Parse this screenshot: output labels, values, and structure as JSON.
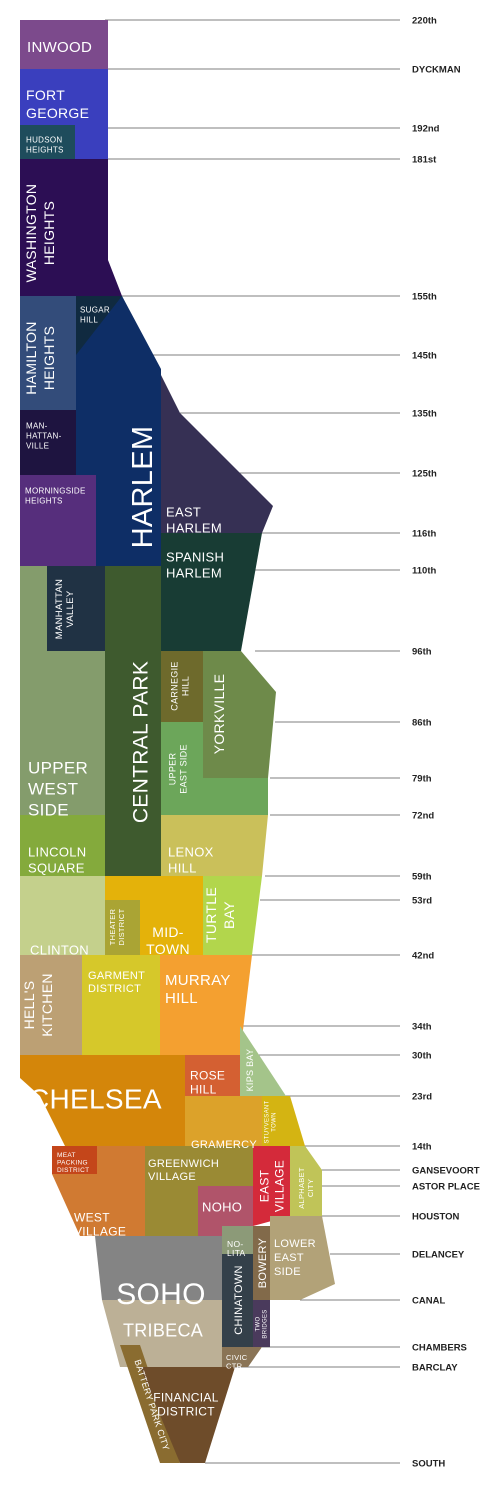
{
  "map": {
    "streets": [
      {
        "id": "220th",
        "label": "220th"
      },
      {
        "id": "dyckman",
        "label": "DYCKMAN"
      },
      {
        "id": "192nd",
        "label": "192nd"
      },
      {
        "id": "181st",
        "label": "181st"
      },
      {
        "id": "155th",
        "label": "155th"
      },
      {
        "id": "145th",
        "label": "145th"
      },
      {
        "id": "135th",
        "label": "135th"
      },
      {
        "id": "125th",
        "label": "125th"
      },
      {
        "id": "116th",
        "label": "116th"
      },
      {
        "id": "110th",
        "label": "110th"
      },
      {
        "id": "96th",
        "label": "96th"
      },
      {
        "id": "86th",
        "label": "86th"
      },
      {
        "id": "79th",
        "label": "79th"
      },
      {
        "id": "72nd",
        "label": "72nd"
      },
      {
        "id": "59th",
        "label": "59th"
      },
      {
        "id": "53rd",
        "label": "53rd"
      },
      {
        "id": "42nd",
        "label": "42nd"
      },
      {
        "id": "34th",
        "label": "34th"
      },
      {
        "id": "30th",
        "label": "30th"
      },
      {
        "id": "23rd",
        "label": "23rd"
      },
      {
        "id": "14th",
        "label": "14th"
      },
      {
        "id": "gansevoort",
        "label": "GANSEVOORT"
      },
      {
        "id": "astor",
        "label": "ASTOR PLACE"
      },
      {
        "id": "houston",
        "label": "HOUSTON"
      },
      {
        "id": "delancey",
        "label": "DELANCEY"
      },
      {
        "id": "canal",
        "label": "CANAL"
      },
      {
        "id": "chambers",
        "label": "CHAMBERS"
      },
      {
        "id": "barclay",
        "label": "BARCLAY"
      },
      {
        "id": "south",
        "label": "SOUTH"
      }
    ],
    "neighborhoods": [
      {
        "id": "inwood",
        "lines": [
          "INWOOD"
        ],
        "color": "#7c4a8c"
      },
      {
        "id": "fort-george",
        "lines": [
          "FORT",
          "GEORGE"
        ],
        "color": "#3a3fbe"
      },
      {
        "id": "hudson-heights",
        "lines": [
          "HUDSON",
          "HEIGHTS"
        ],
        "color": "#1e4c5c"
      },
      {
        "id": "washington-heights",
        "lines": [
          "WASHINGTON",
          "HEIGHTS"
        ],
        "color": "#2c0e54"
      },
      {
        "id": "sugar-hill",
        "lines": [
          "SUGAR",
          "HILL"
        ],
        "color": "#102a40"
      },
      {
        "id": "hamilton-heights",
        "lines": [
          "HAMILTON",
          "HEIGHTS"
        ],
        "color": "#334c7a"
      },
      {
        "id": "manhattanville",
        "lines": [
          "MAN-",
          "HATTAN-",
          "VILLE"
        ],
        "color": "#1e1440"
      },
      {
        "id": "harlem",
        "lines": [
          "HARLEM"
        ],
        "color": "#0e2e66"
      },
      {
        "id": "morningside-heights",
        "lines": [
          "MORNINGSIDE",
          "HEIGHTS"
        ],
        "color": "#562e7c"
      },
      {
        "id": "east-harlem",
        "lines": [
          "EAST",
          "HARLEM"
        ],
        "color": "#363054"
      },
      {
        "id": "spanish-harlem",
        "lines": [
          "SPANISH",
          "HARLEM"
        ],
        "color": "#183c34"
      },
      {
        "id": "manhattan-valley",
        "lines": [
          "MANHATTAN",
          "VALLEY"
        ],
        "color": "#203244"
      },
      {
        "id": "upper-west-side",
        "lines": [
          "UPPER",
          "WEST",
          "SIDE"
        ],
        "color": "#849c6c"
      },
      {
        "id": "central-park",
        "lines": [
          "CENTRAL PARK"
        ],
        "color": "#3e5a2e"
      },
      {
        "id": "carnegie-hill",
        "lines": [
          "CARNEGIE",
          "HILL"
        ],
        "color": "#6e6a2c"
      },
      {
        "id": "yorkville",
        "lines": [
          "YORKVILLE"
        ],
        "color": "#6e8a4a"
      },
      {
        "id": "upper-east-side",
        "lines": [
          "UPPER",
          "EAST SIDE"
        ],
        "color": "#6ca65a"
      },
      {
        "id": "lincoln-square",
        "lines": [
          "LINCOLN",
          "SQUARE"
        ],
        "color": "#84aa3c"
      },
      {
        "id": "lenox-hill",
        "lines": [
          "LENOX",
          "HILL"
        ],
        "color": "#cac05a"
      },
      {
        "id": "clinton",
        "lines": [
          "CLINTON"
        ],
        "color": "#c4d08c"
      },
      {
        "id": "theater-district",
        "lines": [
          "THEATER",
          "DISTRICT"
        ],
        "color": "#aaa434"
      },
      {
        "id": "midtown",
        "lines": [
          "MID-",
          "TOWN"
        ],
        "color": "#e4b20a"
      },
      {
        "id": "turtle-bay",
        "lines": [
          "TURTLE",
          "BAY"
        ],
        "color": "#b2d64c"
      },
      {
        "id": "hells-kitchen",
        "lines": [
          "HELL'S",
          "KITCHEN"
        ],
        "color": "#bca074"
      },
      {
        "id": "garment-district",
        "lines": [
          "GARMENT",
          "DISTRICT"
        ],
        "color": "#d6c82a"
      },
      {
        "id": "murray-hill",
        "lines": [
          "MURRAY",
          "HILL"
        ],
        "color": "#f4a030"
      },
      {
        "id": "kips-bay",
        "lines": [
          "KIPS BAY"
        ],
        "color": "#a4c48a"
      },
      {
        "id": "chelsea",
        "lines": [
          "CHELSEA"
        ],
        "color": "#d4860a"
      },
      {
        "id": "rose-hill",
        "lines": [
          "ROSE",
          "HILL"
        ],
        "color": "#d46032"
      },
      {
        "id": "gramercy",
        "lines": [
          "GRAMERCY"
        ],
        "color": "#dca22a"
      },
      {
        "id": "stuyvesant-town",
        "lines": [
          "STUYVESANT",
          "TOWN"
        ],
        "color": "#d4b412"
      },
      {
        "id": "meatpacking-district",
        "lines": [
          "MEAT",
          "PACKING",
          "DISTRICT"
        ],
        "color": "#c4461a"
      },
      {
        "id": "west-village",
        "lines": [
          "WEST",
          "VILLAGE"
        ],
        "color": "#d07a32"
      },
      {
        "id": "greenwich-village",
        "lines": [
          "GREENWICH",
          "VILLAGE"
        ],
        "color": "#9a8a34"
      },
      {
        "id": "noho",
        "lines": [
          "NOHO"
        ],
        "color": "#b0546a"
      },
      {
        "id": "east-village",
        "lines": [
          "EAST",
          "VILLAGE"
        ],
        "color": "#d42a3a"
      },
      {
        "id": "alphabet-city",
        "lines": [
          "ALPHABET",
          "CITY"
        ],
        "color": "#c0c458"
      },
      {
        "id": "soho",
        "lines": [
          "SOHO"
        ],
        "color": "#848484"
      },
      {
        "id": "tribeca",
        "lines": [
          "TRIBECA"
        ],
        "color": "#bcb096"
      },
      {
        "id": "nolita",
        "lines": [
          "NO-",
          "LITA"
        ],
        "color": "#8c9a78"
      },
      {
        "id": "chinatown",
        "lines": [
          "CHINATOWN"
        ],
        "color": "#34404a"
      },
      {
        "id": "bowery",
        "lines": [
          "BOWERY"
        ],
        "color": "#826a4a"
      },
      {
        "id": "lower-east-side",
        "lines": [
          "LOWER",
          "EAST",
          "SIDE"
        ],
        "color": "#b2a278"
      },
      {
        "id": "two-bridges",
        "lines": [
          "TWO",
          "BRIDGES"
        ],
        "color": "#4a3a5c"
      },
      {
        "id": "civic-center",
        "lines": [
          "CIVIC",
          "CTR"
        ],
        "color": "#8a7456"
      },
      {
        "id": "battery-park-city",
        "lines": [
          "BATTERY PARK CITY"
        ],
        "color": "#8a6c30"
      },
      {
        "id": "financial-district",
        "lines": [
          "FINANCIAL",
          "DISTRICT"
        ],
        "color": "#6e4c2a"
      }
    ]
  }
}
